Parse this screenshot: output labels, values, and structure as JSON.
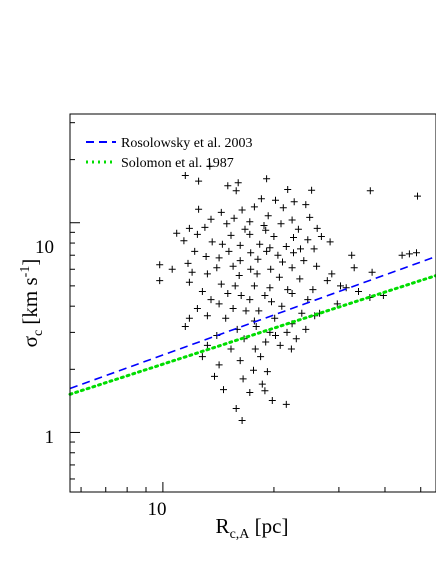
{
  "chart_data": {
    "type": "scatter",
    "xscale": "log",
    "yscale": "log",
    "xlim": [
      5.6,
      55
    ],
    "ylim": [
      0.52,
      33
    ],
    "x_ticks": [
      10
    ],
    "y_ticks": [
      1,
      10
    ],
    "x_tick_labels": [
      "10"
    ],
    "y_tick_labels": [
      "1",
      "10"
    ],
    "xlabel": {
      "main": "R",
      "sub": "c,A",
      "unit": " [pc]"
    },
    "ylabel": {
      "main": "σ",
      "sub": "c",
      "unit_pre": " [km s",
      "sup": "-1",
      "unit_post": "]"
    },
    "grid": false,
    "legend_position": "top-left",
    "series": [
      {
        "name": "Rosolowsky et al. 2003",
        "kind": "line",
        "style": "dashed",
        "color": "#0000ff",
        "x": [
          5.6,
          55
        ],
        "y": [
          1.62,
          6.9
        ]
      },
      {
        "name": "Solomon et al. 1987",
        "kind": "line",
        "style": "dotted",
        "color": "#00dd00",
        "x": [
          5.6,
          55
        ],
        "y": [
          1.52,
          5.6
        ]
      },
      {
        "name": "",
        "kind": "points",
        "marker": "+",
        "color": "#000000",
        "points": [
          [
            11.5,
            16.8
          ],
          [
            13.4,
            18.6
          ],
          [
            12.5,
            15.8
          ],
          [
            19.1,
            16.2
          ],
          [
            15.0,
            15.0
          ],
          [
            16.0,
            15.5
          ],
          [
            21.8,
            14.4
          ],
          [
            25.3,
            14.3
          ],
          [
            15.8,
            14.2
          ],
          [
            36.5,
            14.2
          ],
          [
            49.0,
            13.4
          ],
          [
            18.5,
            13.0
          ],
          [
            20.2,
            12.8
          ],
          [
            22.7,
            12.6
          ],
          [
            24.4,
            12.2
          ],
          [
            17.7,
            11.9
          ],
          [
            12.5,
            11.6
          ],
          [
            14.4,
            11.2
          ],
          [
            16.4,
            11.5
          ],
          [
            21.2,
            11.8
          ],
          [
            19.3,
            10.8
          ],
          [
            15.6,
            10.5
          ],
          [
            13.5,
            10.4
          ],
          [
            22.4,
            10.3
          ],
          [
            25.0,
            10.6
          ],
          [
            17.2,
            10.1
          ],
          [
            14.9,
            9.9
          ],
          [
            18.8,
            9.7
          ],
          [
            20.9,
            9.9
          ],
          [
            11.8,
            9.4
          ],
          [
            13.0,
            9.5
          ],
          [
            16.7,
            9.3
          ],
          [
            19.0,
            9.2
          ],
          [
            23.3,
            9.3
          ],
          [
            26.2,
            9.4
          ],
          [
            10.9,
            8.9
          ],
          [
            12.4,
            8.8
          ],
          [
            15.3,
            8.7
          ],
          [
            17.2,
            8.8
          ],
          [
            20.0,
            8.6
          ],
          [
            22.6,
            8.5
          ],
          [
            24.7,
            8.3
          ],
          [
            28.4,
            8.1
          ],
          [
            11.4,
            8.2
          ],
          [
            13.6,
            8.1
          ],
          [
            14.5,
            7.9
          ],
          [
            16.2,
            7.8
          ],
          [
            18.3,
            7.9
          ],
          [
            19.5,
            7.6
          ],
          [
            21.6,
            7.7
          ],
          [
            23.6,
            7.5
          ],
          [
            25.7,
            7.5
          ],
          [
            12.2,
            7.3
          ],
          [
            15.1,
            7.3
          ],
          [
            17.3,
            7.2
          ],
          [
            19.1,
            7.3
          ],
          [
            20.5,
            7.0
          ],
          [
            22.6,
            7.2
          ],
          [
            13.1,
            6.9
          ],
          [
            14.2,
            6.8
          ],
          [
            16.2,
            6.6
          ],
          [
            18.1,
            6.7
          ],
          [
            21.1,
            6.5
          ],
          [
            24.1,
            6.6
          ],
          [
            32.5,
            7.0
          ],
          [
            44.5,
            7.0
          ],
          [
            46.6,
            7.1
          ],
          [
            48.7,
            7.2
          ],
          [
            9.8,
            6.3
          ],
          [
            11.7,
            6.4
          ],
          [
            14.0,
            6.1
          ],
          [
            15.5,
            6.2
          ],
          [
            17.3,
            6.0
          ],
          [
            19.6,
            6.0
          ],
          [
            22.4,
            6.1
          ],
          [
            26.1,
            6.2
          ],
          [
            33.0,
            6.1
          ],
          [
            12.0,
            5.8
          ],
          [
            13.2,
            5.7
          ],
          [
            16.1,
            5.6
          ],
          [
            18.0,
            5.7
          ],
          [
            20.7,
            5.5
          ],
          [
            23.5,
            5.4
          ],
          [
            28.7,
            5.7
          ],
          [
            36.9,
            5.8
          ],
          [
            9.8,
            5.3
          ],
          [
            11.8,
            5.2
          ],
          [
            14.4,
            5.1
          ],
          [
            15.7,
            5.0
          ],
          [
            17.7,
            5.0
          ],
          [
            19.5,
            4.9
          ],
          [
            21.8,
            4.8
          ],
          [
            25.5,
            4.8
          ],
          [
            30.3,
            5.0
          ],
          [
            12.8,
            4.7
          ],
          [
            15.0,
            4.6
          ],
          [
            16.3,
            4.5
          ],
          [
            18.9,
            4.5
          ],
          [
            22.4,
            4.6
          ],
          [
            13.5,
            4.3
          ],
          [
            14.2,
            4.1
          ],
          [
            17.2,
            4.3
          ],
          [
            19.7,
            4.2
          ],
          [
            21.0,
            4.0
          ],
          [
            24.7,
            4.3
          ],
          [
            36.4,
            4.4
          ],
          [
            39.6,
            4.5
          ],
          [
            12.4,
            3.9
          ],
          [
            15.5,
            3.9
          ],
          [
            16.8,
            3.8
          ],
          [
            18.2,
            3.8
          ],
          [
            23.8,
            3.7
          ],
          [
            26.6,
            3.7
          ],
          [
            11.8,
            3.5
          ],
          [
            13.2,
            3.6
          ],
          [
            14.8,
            3.5
          ],
          [
            17.7,
            3.4
          ],
          [
            20.1,
            3.5
          ],
          [
            22.4,
            3.3
          ],
          [
            11.5,
            3.2
          ],
          [
            15.9,
            3.1
          ],
          [
            17.9,
            3.2
          ],
          [
            19.5,
            3.0
          ],
          [
            21.7,
            3.0
          ],
          [
            24.4,
            3.1
          ],
          [
            14.0,
            2.9
          ],
          [
            16.6,
            2.8
          ],
          [
            19.0,
            2.7
          ],
          [
            20.8,
            2.6
          ],
          [
            13.2,
            2.6
          ],
          [
            15.3,
            2.5
          ],
          [
            17.8,
            2.5
          ],
          [
            22.3,
            2.5
          ],
          [
            18.4,
            2.3
          ],
          [
            12.8,
            2.3
          ],
          [
            16.2,
            2.2
          ],
          [
            14.2,
            2.1
          ],
          [
            17.6,
            1.98
          ],
          [
            19.2,
            1.95
          ],
          [
            13.8,
            1.85
          ],
          [
            16.5,
            1.8
          ],
          [
            18.6,
            1.7
          ],
          [
            14.6,
            1.6
          ],
          [
            17.2,
            1.55
          ],
          [
            18.9,
            1.58
          ],
          [
            15.8,
            1.3
          ],
          [
            19.8,
            1.42
          ],
          [
            21.6,
            1.36
          ],
          [
            16.4,
            1.14
          ],
          [
            20.2,
            2.9
          ],
          [
            23.0,
            2.8
          ],
          [
            25.8,
            3.6
          ],
          [
            10.6,
            6.0
          ],
          [
            26.9,
            8.6
          ],
          [
            27.9,
            5.3
          ],
          [
            31.4,
            4.9
          ],
          [
            33.9,
            4.7
          ],
          [
            29.7,
            4.1
          ]
        ]
      }
    ]
  }
}
